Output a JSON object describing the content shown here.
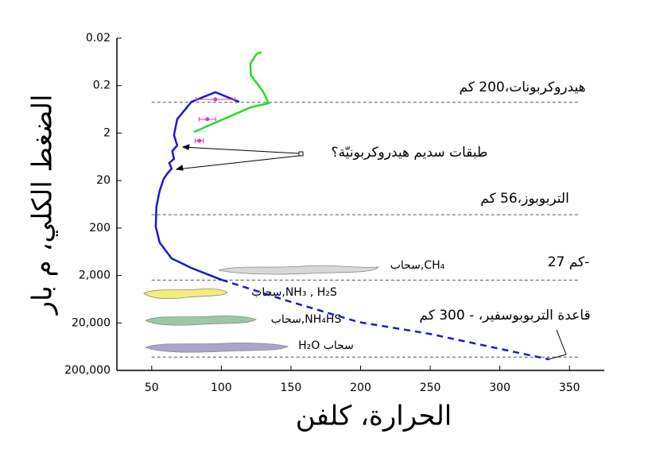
{
  "chart_data": {
    "type": "line",
    "x_label": "الحرارة، كلفن",
    "y_label": "الضغط الكلي، م بار",
    "xlim": [
      25,
      375
    ],
    "xticks": [
      50,
      100,
      150,
      200,
      250,
      300,
      350
    ],
    "ylim": [
      0.02,
      200000
    ],
    "y_scale": "log",
    "y_inverted": true,
    "yticks": [
      0.02,
      0.2,
      2,
      20,
      200,
      {
        "value": 2000,
        "label": "2,000"
      },
      {
        "value": 20000,
        "label": "20,000"
      },
      {
        "value": 200000,
        "label": "200,000"
      }
    ],
    "series": [
      {
        "color": "#1a1acc",
        "dashed": false,
        "x": [
          112.8,
          95.7,
          78.5,
          68.3,
          66,
          68.3,
          64.8,
          66,
          62.6,
          64.3,
          61.4,
          58.6,
          55.7,
          53.4,
          52.9,
          55.7,
          64.3,
          78.5,
          100.2
        ],
        "values": [
          0.44,
          0.275,
          0.44,
          1.02,
          2.2,
          3.65,
          4.8,
          7.0,
          8.5,
          11.2,
          14.1,
          18.4,
          32.9,
          71,
          187,
          404,
          874,
          1390,
          2470
        ]
      },
      {
        "color": "#1a1acc",
        "dashed": true,
        "x": [
          100.2,
          147,
          198.4,
          249.8,
          335.4
        ],
        "values": [
          2470,
          6770,
          19100,
          34000,
          117000
        ]
      },
      {
        "color": "#22dd22",
        "dashed": false,
        "x": [
          80.3,
          101.4,
          121.3,
          133.9,
          129.9,
          121.3,
          120.8,
          125.3,
          128.8
        ],
        "values": [
          1.9,
          1.02,
          0.57,
          0.47,
          0.265,
          0.122,
          0.069,
          0.043,
          0.039
        ]
      },
      {
        "color": "#e030d0",
        "points": true,
        "x": [
          95.7,
          90,
          84.2
        ],
        "values": [
          0.39,
          1.02,
          2.9
        ],
        "xerr": [
          14,
          6,
          3
        ]
      }
    ],
    "hlines": [
      {
        "value": 0.45,
        "label": "هيدروكربونات،200 كم"
      },
      {
        "value": 105,
        "label": "التربوبوز،56 كم"
      },
      {
        "value": 2500,
        "label": "كم 27-"
      },
      {
        "value": 105000,
        "label": "قاعدة التربوبوسفير، - 300 كم"
      }
    ],
    "arrow_label": "طبقات سديم هيدروكربونيّة؟",
    "cloud_labels": [
      "سحاب,CH₄",
      "سحاب,NH₃ , H₂S",
      "سحاب,NH₄HS",
      "H₂O سحاب"
    ]
  }
}
